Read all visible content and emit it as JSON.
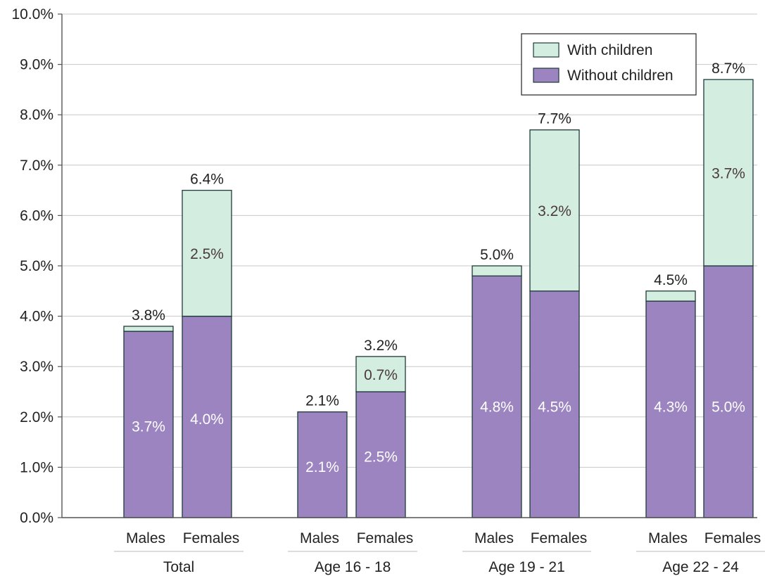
{
  "chart_data": {
    "type": "bar",
    "stacked": true,
    "y_tick_labels": [
      "0.0%",
      "1.0%",
      "2.0%",
      "3.0%",
      "4.0%",
      "5.0%",
      "6.0%",
      "7.0%",
      "8.0%",
      "9.0%",
      "10.0%"
    ],
    "ylim": [
      0,
      10
    ],
    "groups": [
      {
        "label": "Total",
        "bars": [
          {
            "label": "Males",
            "without": 3.7,
            "with": 0.1,
            "total": 3.8,
            "without_label": "3.7%",
            "with_label": "",
            "total_label": "3.8%"
          },
          {
            "label": "Females",
            "without": 4.0,
            "with": 2.5,
            "total": 6.4,
            "without_label": "4.0%",
            "with_label": "2.5%",
            "total_label": "6.4%"
          }
        ]
      },
      {
        "label": "Age 16 - 18",
        "bars": [
          {
            "label": "Males",
            "without": 2.1,
            "with": 0.0,
            "total": 2.1,
            "without_label": "2.1%",
            "with_label": "",
            "total_label": "2.1%"
          },
          {
            "label": "Females",
            "without": 2.5,
            "with": 0.7,
            "total": 3.2,
            "without_label": "2.5%",
            "with_label": "0.7%",
            "total_label": "3.2%"
          }
        ]
      },
      {
        "label": "Age 19 - 21",
        "bars": [
          {
            "label": "Males",
            "without": 4.8,
            "with": 0.2,
            "total": 5.0,
            "without_label": "4.8%",
            "with_label": "",
            "total_label": "5.0%"
          },
          {
            "label": "Females",
            "without": 4.5,
            "with": 3.2,
            "total": 7.7,
            "without_label": "4.5%",
            "with_label": "3.2%",
            "total_label": "7.7%"
          }
        ]
      },
      {
        "label": "Age 22 - 24",
        "bars": [
          {
            "label": "Males",
            "without": 4.3,
            "with": 0.2,
            "total": 4.5,
            "without_label": "4.3%",
            "with_label": "",
            "total_label": "4.5%"
          },
          {
            "label": "Females",
            "without": 5.0,
            "with": 3.7,
            "total": 8.7,
            "without_label": "5.0%",
            "with_label": "3.7%",
            "total_label": "8.7%"
          }
        ]
      }
    ],
    "legend": {
      "placement": "top-right",
      "items": [
        {
          "key": "with",
          "label": "With children",
          "color": "#d4ede1"
        },
        {
          "key": "without",
          "label": "Without children",
          "color": "#9b84c0"
        }
      ]
    },
    "grid": true,
    "colors": {
      "gridline": "#c8c8c8",
      "axis": "#555555",
      "bar_stroke": "#1f3a3a",
      "inner_label": "#ffffff",
      "with_label": "#4a3b3b",
      "text": "#222222"
    }
  }
}
